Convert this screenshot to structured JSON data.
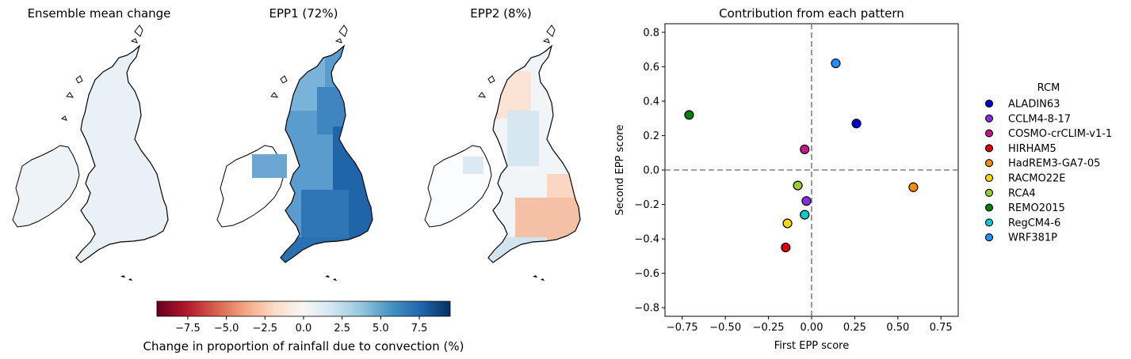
{
  "maps": {
    "panels": [
      {
        "title": "Ensemble mean change",
        "field": "mean"
      },
      {
        "title": "EPP1 (72%)",
        "field": "epp1"
      },
      {
        "title": "EPP2 (8%)",
        "field": "epp2"
      }
    ],
    "colorbar": {
      "label": "Change in proportion of rainfall due to convection (%)",
      "vmin": -9.5,
      "vmax": 9.5,
      "ticks": [
        -7.5,
        -5.0,
        -2.5,
        0.0,
        2.5,
        5.0,
        7.5
      ],
      "tick_labels": [
        "−7.5",
        "−5.0",
        "−2.5",
        "0.0",
        "2.5",
        "5.0",
        "7.5"
      ],
      "colors": [
        "#67001f",
        "#b2182b",
        "#d6604d",
        "#f4a582",
        "#fddbc7",
        "#f7f7f7",
        "#d1e5f0",
        "#92c5de",
        "#4393c3",
        "#2166ac",
        "#053061"
      ]
    }
  },
  "chart_data": {
    "type": "scatter",
    "title": "Contribution from each pattern",
    "xlabel": "First EPP score",
    "ylabel": "Second EPP score",
    "xlim": [
      -0.85,
      0.85
    ],
    "ylim": [
      -0.85,
      0.85
    ],
    "xticks": [
      -0.75,
      -0.5,
      -0.25,
      0.0,
      0.25,
      0.5,
      0.75
    ],
    "xtick_labels": [
      "−0.75",
      "−0.50",
      "−0.25",
      "0.00",
      "0.25",
      "0.50",
      "0.75"
    ],
    "yticks": [
      -0.8,
      -0.6,
      -0.4,
      -0.2,
      0.0,
      0.2,
      0.4,
      0.6,
      0.8
    ],
    "ytick_labels": [
      "−0.8",
      "−0.6",
      "−0.4",
      "−0.2",
      "0.0",
      "0.2",
      "0.4",
      "0.6",
      "0.8"
    ],
    "reference_lines": {
      "x": 0.0,
      "y": 0.0,
      "style": "dashed",
      "color": "#808080"
    },
    "legend_title": "RCM",
    "legend_position": "outside-right",
    "series": [
      {
        "name": "ALADIN63",
        "x": 0.26,
        "y": 0.27,
        "color": "#0000cd"
      },
      {
        "name": "CCLM4-8-17",
        "x": -0.03,
        "y": -0.18,
        "color": "#8a2be2"
      },
      {
        "name": "COSMO-crCLIM-v1-1",
        "x": -0.04,
        "y": 0.12,
        "color": "#c71585"
      },
      {
        "name": "HIRHAM5",
        "x": -0.15,
        "y": -0.45,
        "color": "#e00000"
      },
      {
        "name": "HadREM3-GA7-05",
        "x": 0.59,
        "y": -0.1,
        "color": "#ff8c00"
      },
      {
        "name": "RACMO22E",
        "x": -0.14,
        "y": -0.31,
        "color": "#ffd700"
      },
      {
        "name": "RCA4",
        "x": -0.08,
        "y": -0.09,
        "color": "#9acd32"
      },
      {
        "name": "REMO2015",
        "x": -0.71,
        "y": 0.32,
        "color": "#008000"
      },
      {
        "name": "RegCM4-6",
        "x": -0.04,
        "y": -0.26,
        "color": "#00ced1"
      },
      {
        "name": "WRF381P",
        "x": 0.14,
        "y": 0.62,
        "color": "#1e90ff"
      }
    ]
  }
}
